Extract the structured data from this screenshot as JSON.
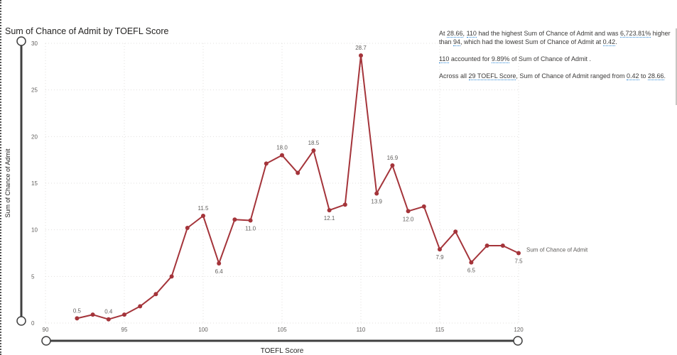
{
  "chart_data": {
    "type": "line",
    "title": "Sum of Chance of Admit by TOEFL Score",
    "xlabel": "TOEFL Score",
    "ylabel": "Sum of Chance of Admit",
    "xlim": [
      90,
      120
    ],
    "ylim": [
      0,
      30
    ],
    "x_ticks": [
      "90",
      "95",
      "100",
      "105",
      "110",
      "115",
      "120"
    ],
    "y_ticks": [
      "0",
      "5",
      "10",
      "15",
      "20",
      "25",
      "30"
    ],
    "grid": true,
    "series": [
      {
        "name": "Sum of Chance of Admit",
        "color": "#A4343A",
        "x": [
          92,
          93,
          94,
          95,
          96,
          97,
          98,
          99,
          100,
          101,
          102,
          103,
          104,
          105,
          106,
          107,
          108,
          109,
          110,
          111,
          112,
          113,
          114,
          115,
          116,
          117,
          118,
          119,
          120
        ],
        "values": [
          0.5,
          0.9,
          0.4,
          0.9,
          1.8,
          3.1,
          5.0,
          10.2,
          11.5,
          6.4,
          11.1,
          11.0,
          17.1,
          18.0,
          16.1,
          18.5,
          12.1,
          12.7,
          28.7,
          13.9,
          16.9,
          12.0,
          12.5,
          7.9,
          9.8,
          6.5,
          8.3,
          8.3,
          7.5
        ]
      }
    ],
    "data_labels": [
      {
        "x": 92,
        "text": "0.5",
        "pos": "above"
      },
      {
        "x": 94,
        "text": "0.4",
        "pos": "above"
      },
      {
        "x": 100,
        "text": "11.5",
        "pos": "above"
      },
      {
        "x": 101,
        "text": "6.4",
        "pos": "below"
      },
      {
        "x": 103,
        "text": "11.0",
        "pos": "below"
      },
      {
        "x": 105,
        "text": "18.0",
        "pos": "above"
      },
      {
        "x": 107,
        "text": "18.5",
        "pos": "above"
      },
      {
        "x": 108,
        "text": "12.1",
        "pos": "below"
      },
      {
        "x": 110,
        "text": "28.7",
        "pos": "above"
      },
      {
        "x": 111,
        "text": "13.9",
        "pos": "below"
      },
      {
        "x": 112,
        "text": "16.9",
        "pos": "above"
      },
      {
        "x": 113,
        "text": "12.0",
        "pos": "below"
      },
      {
        "x": 115,
        "text": "7.9",
        "pos": "below"
      },
      {
        "x": 117,
        "text": "6.5",
        "pos": "below"
      },
      {
        "x": 120,
        "text": "7.5",
        "pos": "below"
      }
    ],
    "series_end_label": "Sum of Chance of Admit"
  },
  "narrative": {
    "p1_prefix": "At ",
    "p1_x": "28.66",
    "p1_mid1": ", ",
    "p1_cat": "110",
    "p1_mid2": " had the highest Sum of Chance of Admit  and was ",
    "p1_pct": "6,723.81%",
    "p1_mid3": " higher than ",
    "p1_low": "94",
    "p1_mid4": ", which had the lowest Sum of Chance of Admit  at ",
    "p1_lowval": "0.42",
    "p1_end": ".",
    "p2_cat": "110",
    "p2_mid": " accounted for ",
    "p2_pct": "9.89%",
    "p2_end": " of Sum of Chance of Admit .",
    "p3_prefix": "Across all ",
    "p3_count": "29 TOEFL Score",
    "p3_mid": ", Sum of Chance of Admit  ranged from ",
    "p3_min": "0.42",
    "p3_mid2": " to ",
    "p3_max": "28.66",
    "p3_end": "."
  }
}
